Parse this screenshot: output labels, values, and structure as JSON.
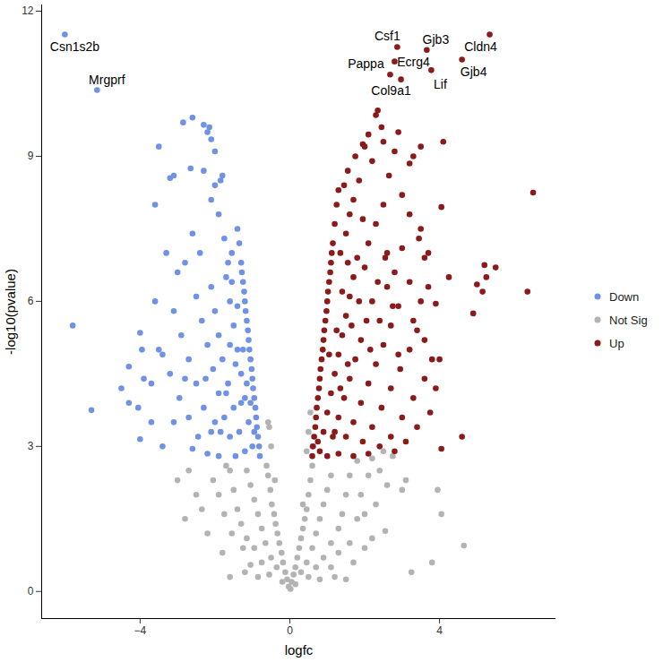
{
  "chart_data": {
    "type": "scatter",
    "x_label": "logfc",
    "y_label": "-log10(pvalue)",
    "xlim": [
      -6.63,
      7.11
    ],
    "ylim": [
      -0.56,
      12.13
    ],
    "xticks": [
      -4,
      0,
      4
    ],
    "yticks": [
      0,
      3,
      6,
      9,
      12
    ],
    "grid": false,
    "legend": "right",
    "series": [
      {
        "name": "Down",
        "color": "#6f92e6",
        "x": [
          -6.01,
          -5.15,
          -5.8,
          -5.3,
          -4.0,
          -4.05,
          -4.3,
          -4.0,
          -3.95,
          -3.6,
          -3.5,
          -3.6,
          -3.5,
          -3.2,
          -3.1,
          -2.85,
          -2.6,
          -2.3,
          -2.2,
          -2.1,
          -2.0,
          -2.15,
          -2.65,
          -2.3,
          -2.0,
          -1.8,
          -1.85,
          -0.8,
          -0.85,
          -0.9,
          -0.95,
          -1.0,
          -1.05,
          -1.1,
          -1.15,
          -1.2,
          -1.25,
          -1.3,
          -1.35,
          -1.4,
          -0.82,
          -0.88,
          -0.92,
          -0.98,
          -1.02,
          -1.08,
          -1.12,
          -1.18,
          -1.22,
          -1.28,
          -1.0,
          -1.1,
          -1.2,
          -1.3,
          -1.4,
          -1.5,
          -1.6,
          -1.7,
          -1.2,
          -1.35,
          -1.5,
          -1.65,
          -1.8,
          -1.9,
          -2.0,
          -2.1,
          -1.45,
          -1.6,
          -1.75,
          -1.9,
          -2.05,
          -2.2,
          -2.35,
          -2.5,
          -1.9,
          -2.1,
          -2.3,
          -2.5,
          -2.7,
          -2.9,
          -3.1,
          -2.2,
          -2.45,
          -2.7,
          -2.95,
          -3.2,
          -3.4,
          -1.55,
          -1.75,
          -1.9,
          -2.1,
          -1.65,
          -2.4,
          -2.6,
          -2.8,
          -3.0,
          -3.3,
          -1.3,
          -1.15,
          -1.45,
          -1.6,
          -1.25,
          -1.4,
          -1.55,
          -1.7,
          -1.85,
          -0.95,
          -1.05,
          -2.6,
          -3.4,
          -3.7,
          -3.9,
          -4.3,
          -4.5,
          -3.7,
          -3.1,
          -2.8,
          -2.25,
          -2.0
        ],
        "y": [
          11.52,
          10.37,
          5.5,
          3.75,
          3.15,
          3.8,
          4.65,
          5.35,
          5.0,
          6.0,
          5.0,
          8.0,
          9.2,
          8.55,
          8.6,
          9.7,
          9.8,
          9.65,
          9.5,
          9.35,
          9.1,
          9.6,
          8.75,
          8.7,
          8.4,
          8.6,
          8.5,
          2.8,
          3.2,
          3.6,
          4.0,
          4.4,
          4.8,
          5.2,
          5.6,
          6.0,
          6.4,
          6.8,
          7.2,
          7.5,
          3.0,
          3.4,
          3.8,
          4.2,
          4.6,
          5.0,
          5.4,
          5.8,
          6.2,
          6.6,
          3.0,
          3.5,
          4.0,
          4.5,
          5.0,
          5.5,
          6.0,
          6.5,
          2.9,
          3.3,
          3.8,
          4.3,
          4.8,
          5.3,
          5.8,
          6.3,
          2.8,
          3.2,
          3.6,
          4.1,
          4.6,
          5.1,
          5.6,
          6.1,
          2.8,
          3.3,
          3.8,
          4.3,
          4.8,
          5.3,
          5.8,
          2.85,
          3.2,
          3.6,
          4.0,
          4.5,
          4.9,
          7.0,
          7.3,
          7.8,
          8.1,
          6.8,
          7.0,
          7.4,
          6.8,
          6.6,
          7.0,
          3.9,
          4.3,
          4.7,
          5.1,
          5.0,
          5.9,
          6.4,
          4.1,
          3.3,
          3.3,
          3.9,
          2.95,
          3.0,
          3.5,
          4.4,
          3.9,
          4.2,
          4.3,
          3.5,
          4.4,
          4.4,
          3.5
        ]
      },
      {
        "name": "Not Sig",
        "color": "#b3b3b3",
        "x": [
          0.02,
          -0.03,
          0.05,
          -0.07,
          0.1,
          -0.12,
          0.15,
          -0.18,
          0.2,
          -0.22,
          0.25,
          -0.28,
          0.3,
          -0.33,
          0.35,
          -0.38,
          0.4,
          -0.42,
          0.45,
          -0.48,
          0.5,
          -0.52,
          0.55,
          -0.58,
          0.6,
          -0.62,
          0.45,
          -0.5,
          0.5,
          -0.55,
          0.55,
          -0.58,
          0.15,
          -0.2,
          0.3,
          -0.35,
          0.45,
          -0.5,
          0.6,
          -0.65,
          0.7,
          -0.75,
          0.8,
          -0.85,
          0.9,
          -0.95,
          1.0,
          -1.05,
          1.1,
          -1.15,
          0.5,
          -0.55,
          0.7,
          -0.75,
          0.9,
          -0.95,
          1.1,
          -1.15,
          1.3,
          -1.3,
          1.4,
          -1.4,
          1.5,
          -1.5,
          1.6,
          -1.6,
          0.8,
          -0.85,
          1.1,
          -1.05,
          1.3,
          -1.25,
          1.6,
          -1.55,
          1.8,
          -1.75,
          1.9,
          -1.9,
          2.1,
          -2.05,
          1.2,
          -1.2,
          1.7,
          -1.8,
          2.2,
          -2.2,
          2.3,
          -2.35,
          2.4,
          -2.5,
          2.6,
          -2.8,
          -3.0,
          4.65,
          3.8,
          3.95,
          4.05,
          3.25,
          2.75,
          2.5,
          2.55,
          3.0,
          3.1,
          -1.6,
          2.0,
          1.5,
          2.0,
          -2.7,
          -1.7,
          1.8,
          2.2,
          0.6,
          -0.4,
          0.35
        ],
        "y": [
          0.05,
          0.1,
          0.2,
          0.25,
          0.35,
          0.4,
          0.5,
          0.6,
          0.7,
          0.8,
          0.9,
          1.0,
          1.1,
          1.2,
          1.3,
          1.4,
          1.5,
          1.6,
          1.7,
          1.8,
          2.0,
          2.1,
          2.3,
          2.4,
          2.6,
          2.6,
          2.9,
          3.0,
          3.3,
          3.4,
          3.7,
          3.5,
          0.15,
          0.2,
          0.4,
          0.5,
          0.6,
          0.7,
          0.9,
          1.0,
          1.2,
          1.3,
          1.5,
          1.6,
          1.8,
          1.9,
          2.1,
          2.2,
          2.4,
          2.5,
          0.3,
          0.35,
          0.5,
          0.6,
          0.7,
          0.9,
          1.0,
          1.1,
          1.3,
          1.4,
          1.6,
          1.7,
          2.0,
          2.1,
          2.4,
          2.5,
          0.25,
          0.3,
          0.5,
          0.55,
          0.8,
          0.9,
          1.0,
          1.2,
          1.5,
          1.6,
          2.0,
          2.0,
          2.4,
          2.3,
          0.3,
          0.4,
          0.6,
          0.8,
          1.1,
          1.2,
          1.8,
          1.7,
          2.5,
          2.0,
          2.2,
          1.5,
          2.3,
          0.95,
          0.6,
          2.1,
          1.6,
          0.4,
          2.8,
          2.9,
          1.25,
          2.1,
          2.3,
          0.3,
          1.6,
          0.25,
          0.9,
          2.5,
          2.6,
          2.7,
          2.75,
          3.0,
          2.3,
          1.8
        ]
      },
      {
        "name": "Up",
        "color": "#8b1a1a",
        "x": [
          5.34,
          4.6,
          3.78,
          3.66,
          2.87,
          2.8,
          2.68,
          2.97,
          6.5,
          6.35,
          5.5,
          5.2,
          5.25,
          5.0,
          5.15,
          4.9,
          4.6,
          4.05,
          4.1,
          4.05,
          3.5,
          3.6,
          4.25,
          3.9,
          3.8,
          4.0,
          3.5,
          3.3,
          3.2,
          2.3,
          2.35,
          2.1,
          1.95,
          0.6,
          0.65,
          0.7,
          0.75,
          0.8,
          0.85,
          0.9,
          0.95,
          1.0,
          1.05,
          1.1,
          1.15,
          1.2,
          1.25,
          1.3,
          0.62,
          0.68,
          0.72,
          0.78,
          0.82,
          0.88,
          0.92,
          0.98,
          1.02,
          1.08,
          1.12,
          0.8,
          0.9,
          1.0,
          1.1,
          1.2,
          1.3,
          1.4,
          1.5,
          1.6,
          1.7,
          1.8,
          1.0,
          1.15,
          1.3,
          1.45,
          1.6,
          1.75,
          1.9,
          2.05,
          2.2,
          2.35,
          1.3,
          1.5,
          1.7,
          1.9,
          2.1,
          2.3,
          2.5,
          2.7,
          2.9,
          1.7,
          1.95,
          2.2,
          2.45,
          2.7,
          2.95,
          3.2,
          3.4,
          2.1,
          2.4,
          2.7,
          3.0,
          3.3,
          3.6,
          2.8,
          3.1,
          1.35,
          1.5,
          1.6,
          1.7,
          1.45,
          1.55,
          1.75,
          1.85,
          1.95,
          2.1,
          2.3,
          2.5,
          2.6,
          2.8,
          3.0,
          3.2,
          3.5,
          1.25,
          1.4,
          1.55,
          1.65,
          1.85,
          2.0,
          2.15,
          2.4,
          2.6,
          1.35,
          1.55,
          1.2,
          1.05,
          0.75,
          2.65,
          2.8,
          2.9,
          2.0,
          2.45,
          2.5,
          2.2,
          3.0,
          3.2,
          3.45,
          3.7,
          3.3,
          3.6,
          3.9,
          3.4,
          3.75,
          2.9,
          3.7,
          2.55,
          2.75
        ],
        "y": [
          11.52,
          11.0,
          10.78,
          11.2,
          11.26,
          10.96,
          10.69,
          10.59,
          8.25,
          6.2,
          6.7,
          6.75,
          6.5,
          6.35,
          6.2,
          5.75,
          3.2,
          2.95,
          9.3,
          7.95,
          7.5,
          6.9,
          6.5,
          5.95,
          4.8,
          4.8,
          9.2,
          9.0,
          8.85,
          9.85,
          9.95,
          9.45,
          9.25,
          2.8,
          3.2,
          3.6,
          4.0,
          4.4,
          4.8,
          5.2,
          5.6,
          6.0,
          6.4,
          6.8,
          7.2,
          7.6,
          8.0,
          8.3,
          3.0,
          3.4,
          3.8,
          4.2,
          4.6,
          5.0,
          5.4,
          5.8,
          6.2,
          6.6,
          7.0,
          2.9,
          3.3,
          3.7,
          4.1,
          4.5,
          4.9,
          5.3,
          5.7,
          6.1,
          6.5,
          6.9,
          2.8,
          3.2,
          3.6,
          4.0,
          4.4,
          4.8,
          5.2,
          5.6,
          6.0,
          6.4,
          2.85,
          3.2,
          3.5,
          3.9,
          4.3,
          4.7,
          5.1,
          5.5,
          5.9,
          2.8,
          3.1,
          3.4,
          3.8,
          4.2,
          4.6,
          5.0,
          5.4,
          2.85,
          3.0,
          3.2,
          3.6,
          4.0,
          4.4,
          2.9,
          3.1,
          7.0,
          7.4,
          7.8,
          8.1,
          8.4,
          8.7,
          9.0,
          8.5,
          7.7,
          7.2,
          7.6,
          8.0,
          7.0,
          6.6,
          7.1,
          6.4,
          6.0,
          5.4,
          6.2,
          6.8,
          5.5,
          6.0,
          6.7,
          5.0,
          5.6,
          6.3,
          4.2,
          4.7,
          3.3,
          4.9,
          3.1,
          8.6,
          9.1,
          9.5,
          9.2,
          9.6,
          9.3,
          8.9,
          8.2,
          7.8,
          7.3,
          7.0,
          5.6,
          5.2,
          4.2,
          3.4,
          3.7,
          4.9,
          6.3,
          6.9,
          5.9
        ]
      }
    ],
    "annotations": [
      {
        "text": "Csn1s2b",
        "x": -6.01,
        "y": 11.52
      },
      {
        "text": "Mrgprf",
        "x": -5.15,
        "y": 10.37
      },
      {
        "text": "Csf1",
        "x": 2.87,
        "y": 11.26
      },
      {
        "text": "Gjb3",
        "x": 3.66,
        "y": 11.2
      },
      {
        "text": "Cldn4",
        "x": 5.34,
        "y": 11.52
      },
      {
        "text": "Gjb4",
        "x": 4.6,
        "y": 11.0
      },
      {
        "text": "Pappa",
        "x": 2.68,
        "y": 10.69
      },
      {
        "text": "Ecrg4",
        "x": 2.8,
        "y": 10.96
      },
      {
        "text": "Lif",
        "x": 3.78,
        "y": 10.78
      },
      {
        "text": "Col9a1",
        "x": 2.97,
        "y": 10.59
      }
    ]
  }
}
